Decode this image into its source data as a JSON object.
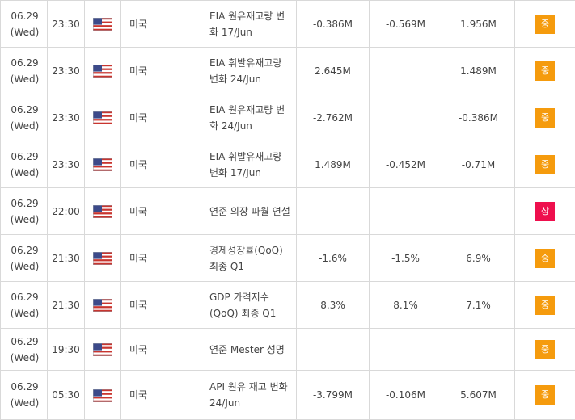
{
  "colors": {
    "importance_medium": "#f59b0d",
    "importance_high": "#ee0f4d",
    "grid_border": "#d9d9d9",
    "text": "#444444"
  },
  "rows": [
    {
      "date": "06.29",
      "weekday": "(Wed)",
      "time": "23:30",
      "flag_icon": "us-flag-icon",
      "country": "미국",
      "event": "EIA 원유재고량 변화 17/Jun",
      "actual": "-0.386M",
      "forecast": "-0.569M",
      "previous": "1.956M",
      "importance": "중",
      "importance_level": "medium"
    },
    {
      "date": "06.29",
      "weekday": "(Wed)",
      "time": "23:30",
      "flag_icon": "us-flag-icon",
      "country": "미국",
      "event": "EIA 휘발유재고량 변화 24/Jun",
      "actual": "2.645M",
      "forecast": "",
      "previous": "1.489M",
      "importance": "중",
      "importance_level": "medium"
    },
    {
      "date": "06.29",
      "weekday": "(Wed)",
      "time": "23:30",
      "flag_icon": "us-flag-icon",
      "country": "미국",
      "event": "EIA 원유재고량 변화 24/Jun",
      "actual": "-2.762M",
      "forecast": "",
      "previous": "-0.386M",
      "importance": "중",
      "importance_level": "medium"
    },
    {
      "date": "06.29",
      "weekday": "(Wed)",
      "time": "23:30",
      "flag_icon": "us-flag-icon",
      "country": "미국",
      "event": "EIA 휘발유재고량 변화 17/Jun",
      "actual": "1.489M",
      "forecast": "-0.452M",
      "previous": "-0.71M",
      "importance": "중",
      "importance_level": "medium"
    },
    {
      "date": "06.29",
      "weekday": "(Wed)",
      "time": "22:00",
      "flag_icon": "us-flag-icon",
      "country": "미국",
      "event": "연준 의장 파월 연설",
      "actual": "",
      "forecast": "",
      "previous": "",
      "importance": "상",
      "importance_level": "high"
    },
    {
      "date": "06.29",
      "weekday": "(Wed)",
      "time": "21:30",
      "flag_icon": "us-flag-icon",
      "country": "미국",
      "event": "경제성장률(QoQ) 최종 Q1",
      "actual": "-1.6%",
      "forecast": "-1.5%",
      "previous": "6.9%",
      "importance": "중",
      "importance_level": "medium"
    },
    {
      "date": "06.29",
      "weekday": "(Wed)",
      "time": "21:30",
      "flag_icon": "us-flag-icon",
      "country": "미국",
      "event": "GDP 가격지수(QoQ) 최종 Q1",
      "actual": "8.3%",
      "forecast": "8.1%",
      "previous": "7.1%",
      "importance": "중",
      "importance_level": "medium"
    },
    {
      "date": "06.29",
      "weekday": "(Wed)",
      "time": "19:30",
      "flag_icon": "us-flag-icon",
      "country": "미국",
      "event": "연준 Mester 성명",
      "actual": "",
      "forecast": "",
      "previous": "",
      "importance": "중",
      "importance_level": "medium"
    },
    {
      "date": "06.29",
      "weekday": "(Wed)",
      "time": "05:30",
      "flag_icon": "us-flag-icon",
      "country": "미국",
      "event": "API 원유 재고 변화 24/Jun",
      "actual": "-3.799M",
      "forecast": "-0.106M",
      "previous": "5.607M",
      "importance": "중",
      "importance_level": "medium"
    }
  ]
}
